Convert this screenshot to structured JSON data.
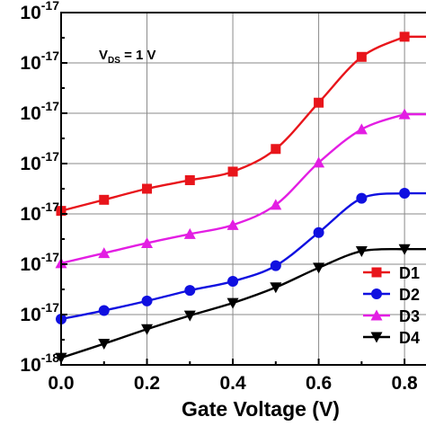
{
  "chart_data": {
    "type": "line",
    "title": "",
    "xlabel": "Gate Voltage (V)",
    "ylabel": "",
    "xlim": [
      0.0,
      0.85
    ],
    "ylim": [
      0,
      7
    ],
    "grid": true,
    "legend_position": "bottom-right",
    "x_ticks": [
      {
        "value": 0.0,
        "label": "0.0"
      },
      {
        "value": 0.2,
        "label": "0.2"
      },
      {
        "value": 0.4,
        "label": "0.4"
      },
      {
        "value": 0.6,
        "label": "0.6"
      },
      {
        "value": 0.8,
        "label": "0.8"
      }
    ],
    "y_ticks": [
      {
        "value": 0,
        "base": "10",
        "exp": "-18"
      },
      {
        "value": 1,
        "base": "10",
        "exp": "-17"
      },
      {
        "value": 2,
        "base": "10",
        "exp": "-17"
      },
      {
        "value": 3,
        "base": "10",
        "exp": "-17"
      },
      {
        "value": 4,
        "base": "10",
        "exp": "-17"
      },
      {
        "value": 5,
        "base": "10",
        "exp": "-17"
      },
      {
        "value": 6,
        "base": "10",
        "exp": "-17"
      },
      {
        "value": 7,
        "base": "10",
        "exp": "-17"
      }
    ],
    "annotation": {
      "main": "V",
      "sub": "DS",
      "rest": " = 1 V"
    },
    "series": [
      {
        "name": "D1",
        "color": "#e8151b",
        "marker": "square",
        "x": [
          0.0,
          0.1,
          0.2,
          0.3,
          0.4,
          0.5,
          0.6,
          0.7,
          0.8
        ],
        "y": [
          3.06,
          3.28,
          3.5,
          3.67,
          3.84,
          4.29,
          5.21,
          6.12,
          6.52
        ]
      },
      {
        "name": "D2",
        "color": "#1010e0",
        "marker": "circle",
        "x": [
          0.0,
          0.1,
          0.2,
          0.3,
          0.4,
          0.5,
          0.6,
          0.7,
          0.8
        ],
        "y": [
          0.91,
          1.08,
          1.27,
          1.48,
          1.66,
          1.97,
          2.63,
          3.31,
          3.41
        ]
      },
      {
        "name": "D3",
        "color": "#e31ee3",
        "marker": "triangle-up",
        "x": [
          0.0,
          0.1,
          0.2,
          0.3,
          0.4,
          0.5,
          0.6,
          0.7,
          0.8
        ],
        "y": [
          2.02,
          2.22,
          2.42,
          2.6,
          2.78,
          3.18,
          4.02,
          4.68,
          4.98
        ]
      },
      {
        "name": "D4",
        "color": "#000000",
        "marker": "triangle-down",
        "x": [
          0.0,
          0.1,
          0.2,
          0.3,
          0.4,
          0.5,
          0.6,
          0.7,
          0.8
        ],
        "y": [
          0.14,
          0.42,
          0.71,
          0.98,
          1.23,
          1.54,
          1.93,
          2.26,
          2.3
        ]
      }
    ]
  }
}
